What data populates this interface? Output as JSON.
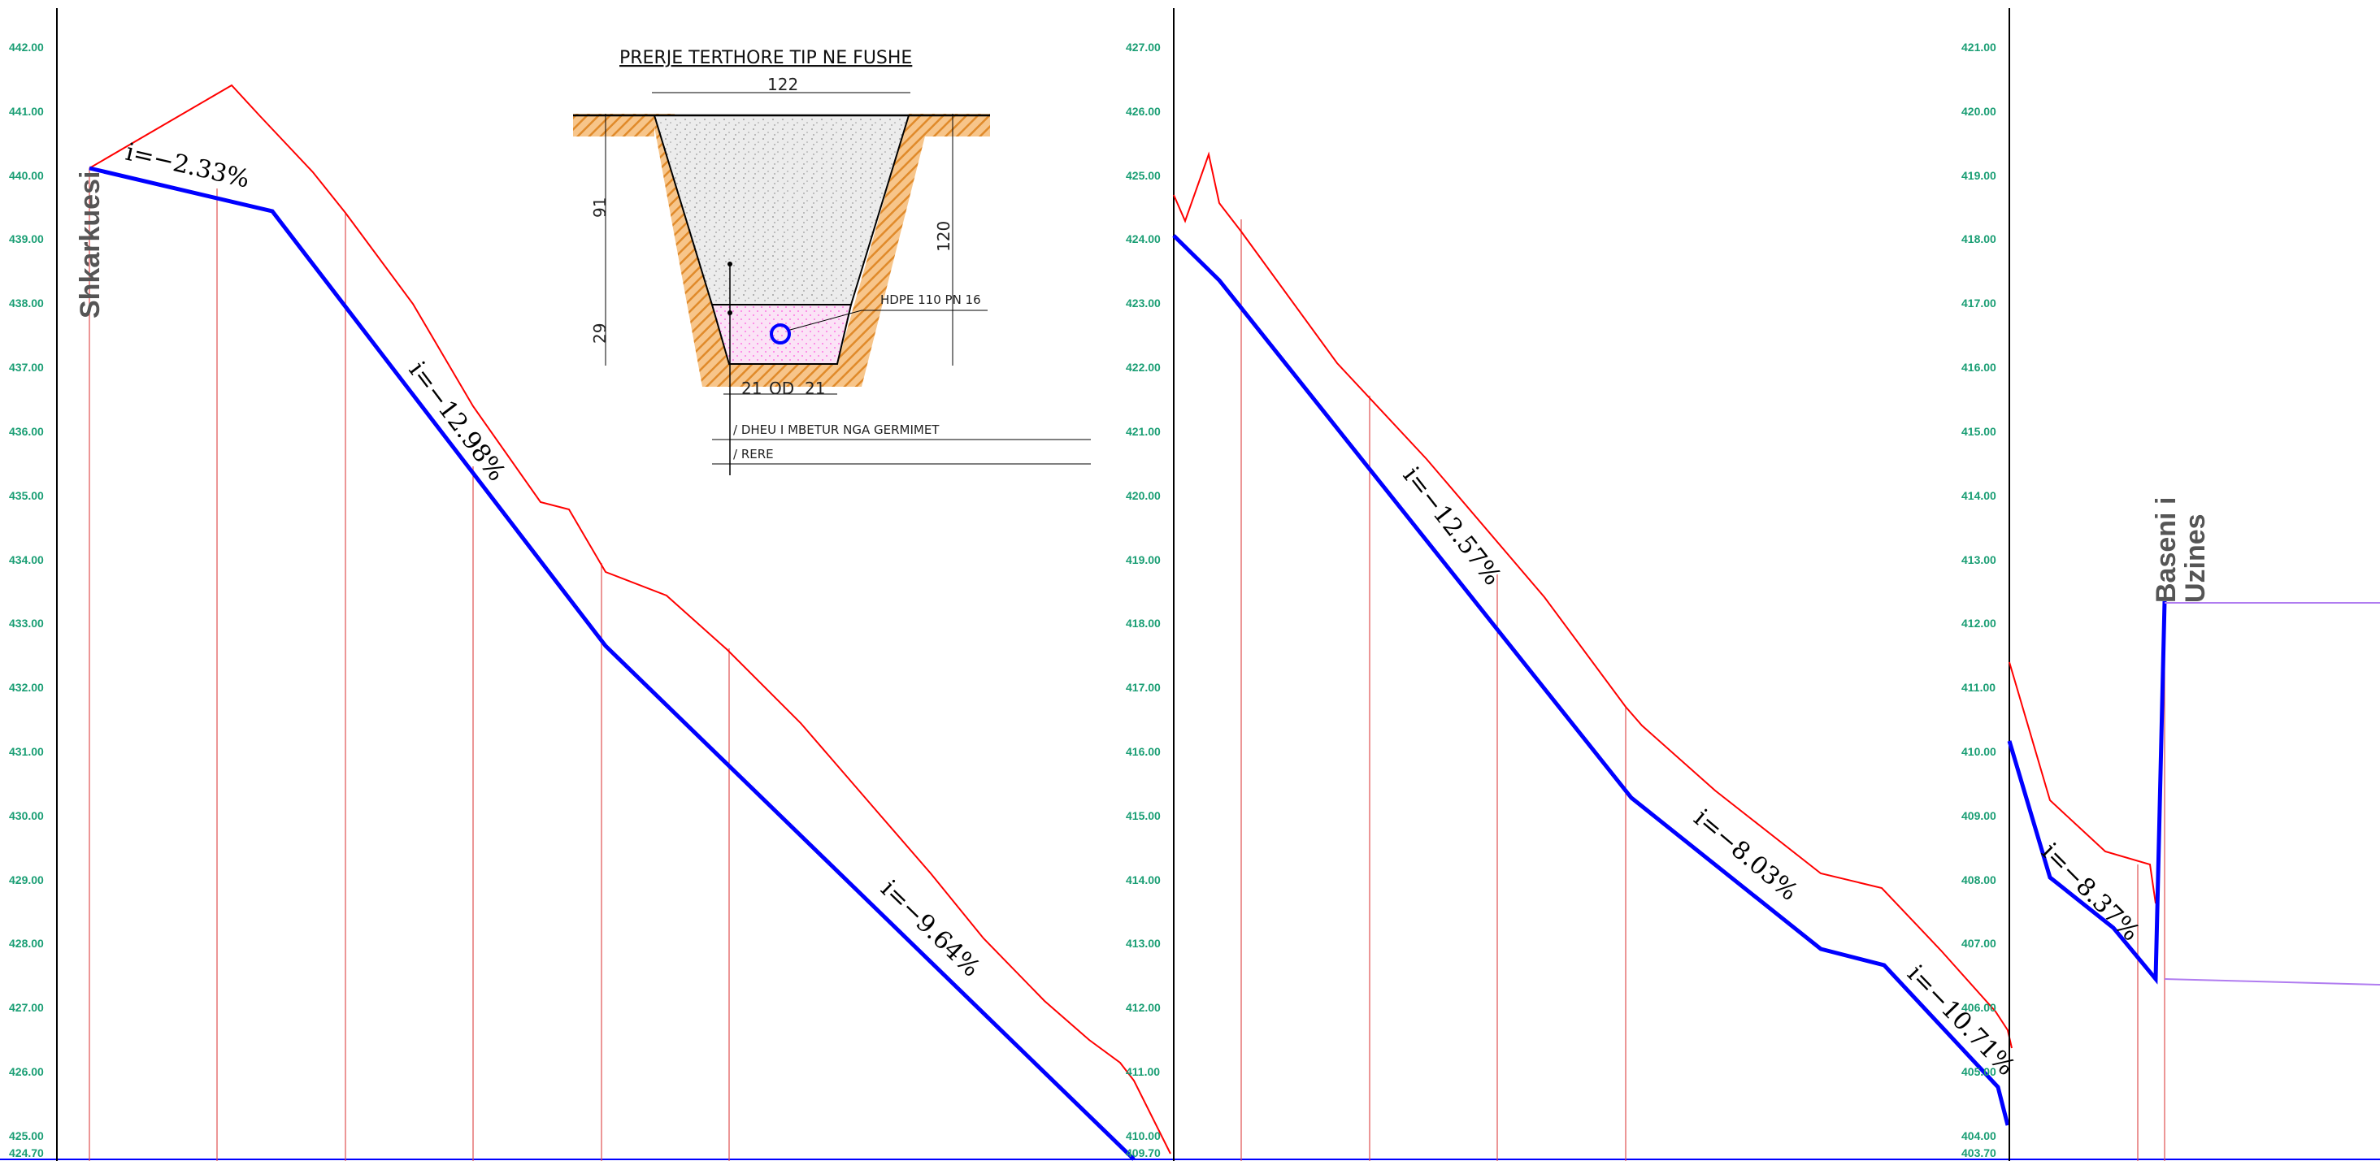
{
  "colors": {
    "ground": "#ff0000",
    "pipe": "#0000ff",
    "station_line": "#e05050",
    "axis_labels": "#1a9e74",
    "reservoir": "#b07cf0",
    "trench_hatch": "#f0a040",
    "sand_fill": "#ff66dd",
    "cover_fill": "#d8d8d8"
  },
  "panels": [
    {
      "axis_ticks": [
        "442.00",
        "441.00",
        "440.00",
        "439.00",
        "438.00",
        "437.00",
        "436.00",
        "435.00",
        "434.00",
        "433.00",
        "432.00",
        "431.00",
        "430.00",
        "429.00",
        "428.00",
        "427.00",
        "426.00",
        "425.00"
      ],
      "datum_label": "424.70",
      "station_label": "Shkarkuesi",
      "slopes": [
        "i=−2.33%",
        "i=−12.98%",
        "i=−9.64%"
      ]
    },
    {
      "axis_ticks": [
        "427.00",
        "426.00",
        "425.00",
        "424.00",
        "423.00",
        "422.00",
        "421.00",
        "420.00",
        "419.00",
        "418.00",
        "417.00",
        "416.00",
        "415.00",
        "414.00",
        "413.00",
        "412.00",
        "411.00",
        "410.00"
      ],
      "datum_label": "409.70",
      "slopes": [
        "i=−12.57%",
        "i=−8.03%",
        "i=−10.71%"
      ]
    },
    {
      "axis_ticks": [
        "421.00",
        "420.00",
        "419.00",
        "418.00",
        "417.00",
        "416.00",
        "415.00",
        "414.00",
        "413.00",
        "412.00",
        "411.00",
        "410.00",
        "409.00",
        "408.00",
        "407.00",
        "406.00",
        "405.00",
        "404.00"
      ],
      "datum_label": "403.70",
      "station_label_line1": "Baseni i",
      "station_label_line2": "Uzines",
      "slopes": [
        "i=−8.37%"
      ]
    }
  ],
  "cross_section": {
    "title": "PRERJE TERTHORE TIP NE FUSHE",
    "top_width": "122",
    "bottom_left": "21",
    "pipe_od": "OD",
    "bottom_right": "21",
    "depth_upper": "91",
    "depth_lower": "29",
    "total_depth": "120",
    "pipe_label": "HDPE 110 PN 16",
    "legend_1": "/ DHEU I MBETUR NGA GERMIMET",
    "legend_2": "/ RERE"
  }
}
